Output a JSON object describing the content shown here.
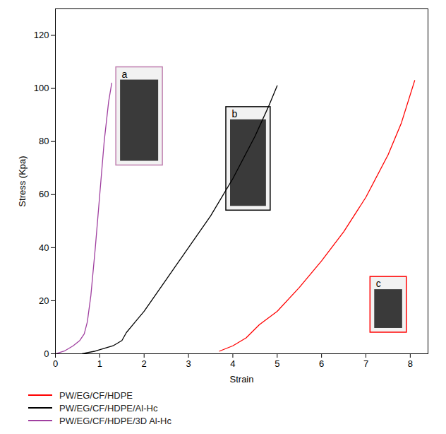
{
  "chart_data": {
    "type": "line",
    "x_label": "Strain",
    "y_label": "Stress (Kpa)",
    "xlim": [
      0,
      8.4
    ],
    "ylim": [
      0,
      130
    ],
    "xticks": [
      0,
      1,
      2,
      3,
      4,
      5,
      6,
      7,
      8
    ],
    "yticks": [
      0,
      20,
      40,
      60,
      80,
      100,
      120
    ],
    "grid": false,
    "legend": "bottom",
    "series": [
      {
        "name": "PW/EG/CF/HDPE",
        "color": "#ff0000",
        "x": [
          3.7,
          4.0,
          4.3,
          4.6,
          5.0,
          5.5,
          6.0,
          6.5,
          7.0,
          7.5,
          7.8,
          8.1
        ],
        "values": [
          1,
          3,
          6,
          11,
          16,
          25,
          35,
          46,
          59,
          75,
          87,
          103
        ]
      },
      {
        "name": "PW/EG/CF/HDPE/Al-Hc",
        "color": "#000000",
        "x": [
          0.6,
          0.9,
          1.1,
          1.3,
          1.5,
          1.6,
          1.8,
          2.0,
          2.5,
          3.0,
          3.5,
          4.0,
          4.5,
          4.8,
          5.0
        ],
        "values": [
          0,
          1,
          2,
          3,
          5,
          8,
          12,
          16,
          28,
          40,
          52,
          66,
          82,
          93,
          101
        ]
      },
      {
        "name": "PW/EG/CF/HDPE/3D Al-Hc",
        "color": "#a040a0",
        "x": [
          0,
          0.2,
          0.4,
          0.55,
          0.65,
          0.72,
          0.8,
          0.9,
          1.0,
          1.1,
          1.2,
          1.27
        ],
        "values": [
          0,
          1,
          3,
          5,
          7.5,
          12,
          22,
          40,
          60,
          80,
          95,
          102
        ]
      }
    ],
    "annotations": [
      {
        "text": "a",
        "x": 1.37,
        "y": 108,
        "color": "#c080b0"
      },
      {
        "text": "b",
        "x": 3.85,
        "y": 93,
        "color": "#000000"
      },
      {
        "text": "c",
        "x": 7.1,
        "y": 29,
        "color": "#ff0000"
      }
    ]
  }
}
